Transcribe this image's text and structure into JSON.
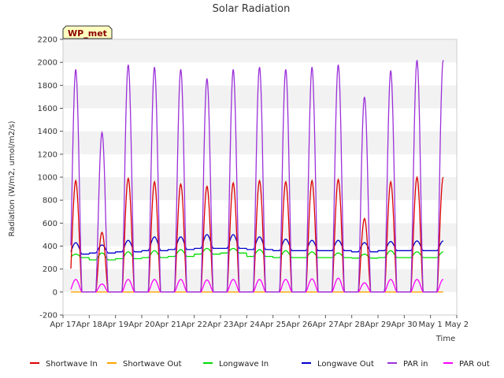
{
  "chart_data": {
    "type": "line",
    "title": "Solar Radiation",
    "xlabel": "Time",
    "ylabel": "Radiation (W/m2, umol/m2/s)",
    "badge": "WP_met",
    "ylim": [
      -200,
      2200
    ],
    "yticks": [
      -200,
      0,
      200,
      400,
      600,
      800,
      1000,
      1200,
      1400,
      1600,
      1800,
      2000,
      2200
    ],
    "xlim": [
      17,
      32
    ],
    "xticks": [
      {
        "value": 17,
        "label": "Apr 17"
      },
      {
        "value": 18,
        "label": "Apr 18"
      },
      {
        "value": 19,
        "label": "Apr 19"
      },
      {
        "value": 20,
        "label": "Apr 20"
      },
      {
        "value": 21,
        "label": "Apr 21"
      },
      {
        "value": 22,
        "label": "Apr 22"
      },
      {
        "value": 23,
        "label": "Apr 23"
      },
      {
        "value": 24,
        "label": "Apr 24"
      },
      {
        "value": 25,
        "label": "Apr 25"
      },
      {
        "value": 26,
        "label": "Apr 26"
      },
      {
        "value": 27,
        "label": "Apr 27"
      },
      {
        "value": 28,
        "label": "Apr 28"
      },
      {
        "value": 29,
        "label": "Apr 29"
      },
      {
        "value": 30,
        "label": "Apr 30"
      },
      {
        "value": 31,
        "label": "May 1"
      },
      {
        "value": 32,
        "label": "May 2"
      }
    ],
    "grid": "horizontal bands",
    "legend_position": "bottom",
    "series": [
      {
        "name": "Shortwave In",
        "color": "#dd0000",
        "daily_peak": [
          970,
          520,
          990,
          960,
          940,
          920,
          950,
          970,
          960,
          970,
          980,
          640,
          960,
          1000
        ]
      },
      {
        "name": "Shortwave Out",
        "color": "#ffa500",
        "daily_peak": [
          0,
          0,
          0,
          0,
          0,
          0,
          0,
          0,
          0,
          0,
          0,
          0,
          0,
          0
        ]
      },
      {
        "name": "Longwave In",
        "color": "#00dd00",
        "daily_base": [
          300,
          280,
          290,
          300,
          310,
          330,
          340,
          310,
          300,
          300,
          300,
          295,
          300,
          300
        ],
        "daily_peak": [
          330,
          340,
          350,
          360,
          370,
          380,
          380,
          370,
          360,
          350,
          340,
          330,
          360,
          350
        ]
      },
      {
        "name": "Longwave Out",
        "color": "#0000cc",
        "daily_base": [
          330,
          340,
          350,
          360,
          370,
          380,
          380,
          370,
          360,
          360,
          360,
          350,
          360,
          360
        ],
        "daily_peak": [
          430,
          410,
          450,
          480,
          480,
          500,
          500,
          480,
          460,
          450,
          450,
          430,
          440,
          445
        ]
      },
      {
        "name": "PAR in",
        "color": "#9b30d9",
        "daily_peak": [
          1940,
          1390,
          1980,
          1960,
          1940,
          1860,
          1940,
          1960,
          1940,
          1960,
          1980,
          1700,
          1930,
          2020
        ]
      },
      {
        "name": "PAR out",
        "color": "#ff00ff",
        "daily_peak": [
          110,
          70,
          110,
          110,
          110,
          105,
          110,
          110,
          110,
          115,
          120,
          80,
          110,
          110
        ]
      }
    ]
  }
}
